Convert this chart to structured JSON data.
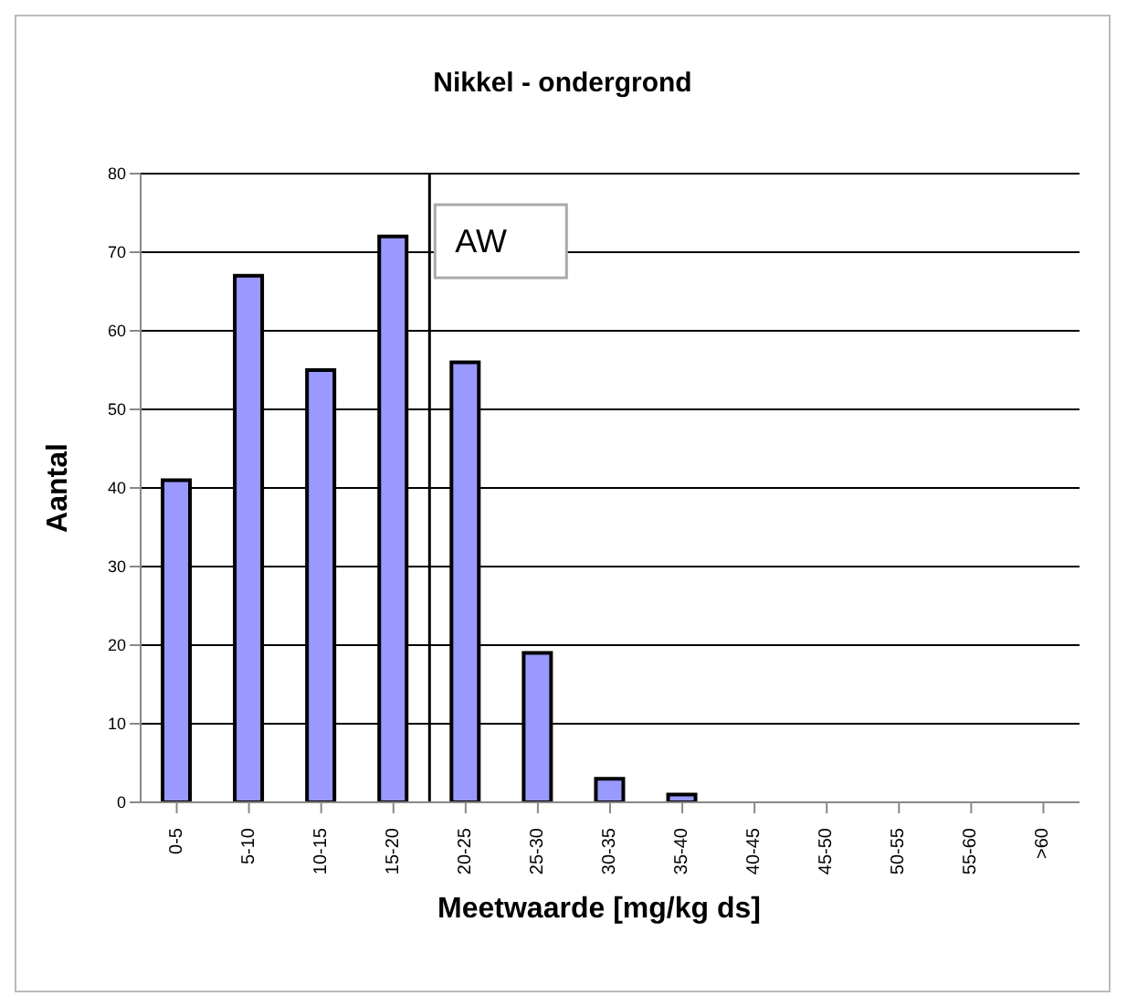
{
  "chart_data": {
    "type": "bar",
    "title": "Nikkel - ondergrond",
    "xlabel": "Meetwaarde [mg/kg ds]",
    "ylabel": "Aantal",
    "categories": [
      "0-5",
      "5-10",
      "10-15",
      "15-20",
      "20-25",
      "25-30",
      "30-35",
      "35-40",
      "40-45",
      "45-50",
      "50-55",
      "55-60",
      ">60"
    ],
    "values": [
      41,
      67,
      55,
      72,
      56,
      19,
      3,
      1,
      0,
      0,
      0,
      0,
      0
    ],
    "color": "#9999ff",
    "ylim": [
      0,
      80
    ],
    "yticks": [
      0,
      10,
      20,
      30,
      40,
      50,
      60,
      70,
      80
    ],
    "grid": "y",
    "legend": false,
    "ref_lines": [
      {
        "axis": "x",
        "value": "20-25",
        "label": "AW",
        "color": "#000000"
      }
    ]
  }
}
